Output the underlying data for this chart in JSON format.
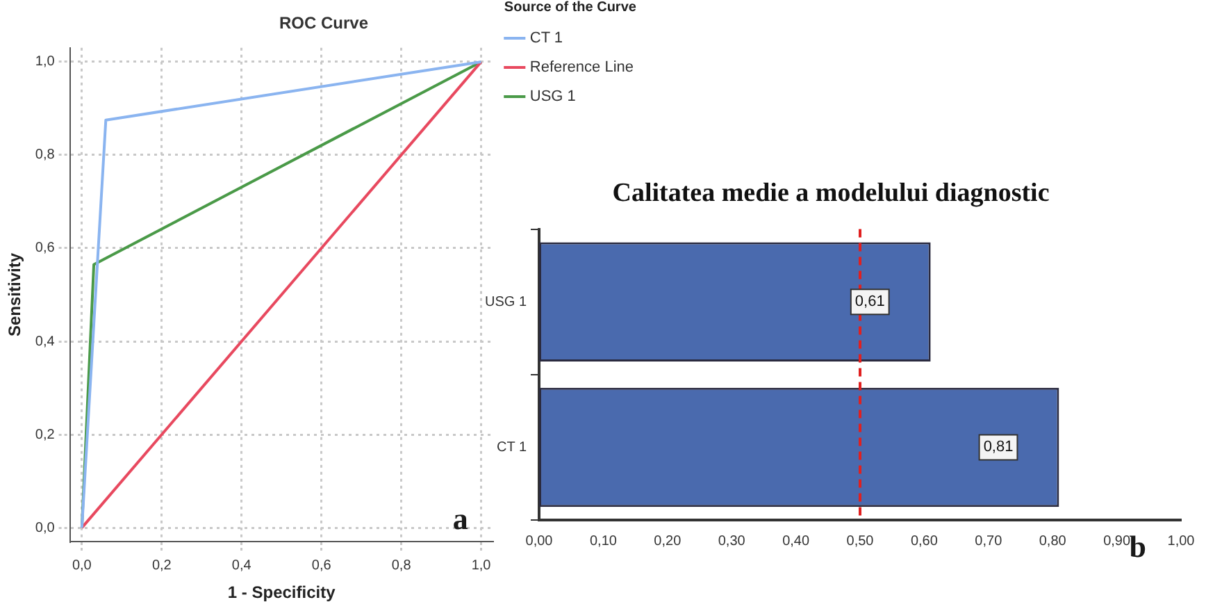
{
  "chart_data": [
    {
      "type": "line",
      "title": "ROC Curve",
      "xlabel": "1 - Specificity",
      "ylabel": "Sensitivity",
      "legend_title": "Source of the Curve",
      "legend": "right",
      "grid": true,
      "marker": "none",
      "line_style": "solid",
      "annotations": [
        "a"
      ],
      "xlim": [
        -0.03,
        1.03
      ],
      "ylim": [
        -0.03,
        1.03
      ],
      "xticks": [
        {
          "value": 0,
          "label": "0,0"
        },
        {
          "value": 0.2,
          "label": "0,2"
        },
        {
          "value": 0.4,
          "label": "0,4"
        },
        {
          "value": 0.6,
          "label": "0,6"
        },
        {
          "value": 0.8,
          "label": "0,8"
        },
        {
          "value": 1,
          "label": "1,0"
        }
      ],
      "yticks": [
        {
          "value": 0,
          "label": "0,0"
        },
        {
          "value": 0.2,
          "label": "0,2"
        },
        {
          "value": 0.4,
          "label": "0,4"
        },
        {
          "value": 0.6,
          "label": "0,6"
        },
        {
          "value": 0.8,
          "label": "0,8"
        },
        {
          "value": 1,
          "label": "1,0"
        }
      ],
      "series": [
        {
          "name": "CT 1",
          "color": "#8ab4f0",
          "x": [
            0,
            0.06,
            1
          ],
          "values": [
            0,
            0.875,
            1
          ]
        },
        {
          "name": "Reference Line",
          "color": "#e8495f",
          "x": [
            0,
            1
          ],
          "values": [
            0,
            1
          ]
        },
        {
          "name": "USG 1",
          "color": "#4a9a48",
          "x": [
            0,
            0.03,
            1
          ],
          "values": [
            0,
            0.565,
            1
          ]
        }
      ]
    },
    {
      "type": "bar",
      "orientation": "horizontal",
      "title": "Calitatea medie a modelului diagnostic",
      "categories": [
        "USG 1",
        "CT 1"
      ],
      "values": [
        0.61,
        0.81
      ],
      "value_labels": [
        "0,61",
        "0,81"
      ],
      "color": "#4a6aae",
      "annotations": [
        "b"
      ],
      "xlim": [
        0,
        1
      ],
      "xticks": [
        {
          "value": 0,
          "label": "0,00"
        },
        {
          "value": 0.1,
          "label": "0,10"
        },
        {
          "value": 0.2,
          "label": "0,20"
        },
        {
          "value": 0.3,
          "label": "0,30"
        },
        {
          "value": 0.4,
          "label": "0,40"
        },
        {
          "value": 0.5,
          "label": "0,50"
        },
        {
          "value": 0.6,
          "label": "0,60"
        },
        {
          "value": 0.7,
          "label": "0,70"
        },
        {
          "value": 0.8,
          "label": "0,80"
        },
        {
          "value": 0.9,
          "label": "0,90"
        },
        {
          "value": 1,
          "label": "1,00"
        }
      ],
      "ref_lines": [
        {
          "axis": "x",
          "value": 0.5,
          "color": "#e02020",
          "line_style": "dashed"
        }
      ]
    }
  ]
}
